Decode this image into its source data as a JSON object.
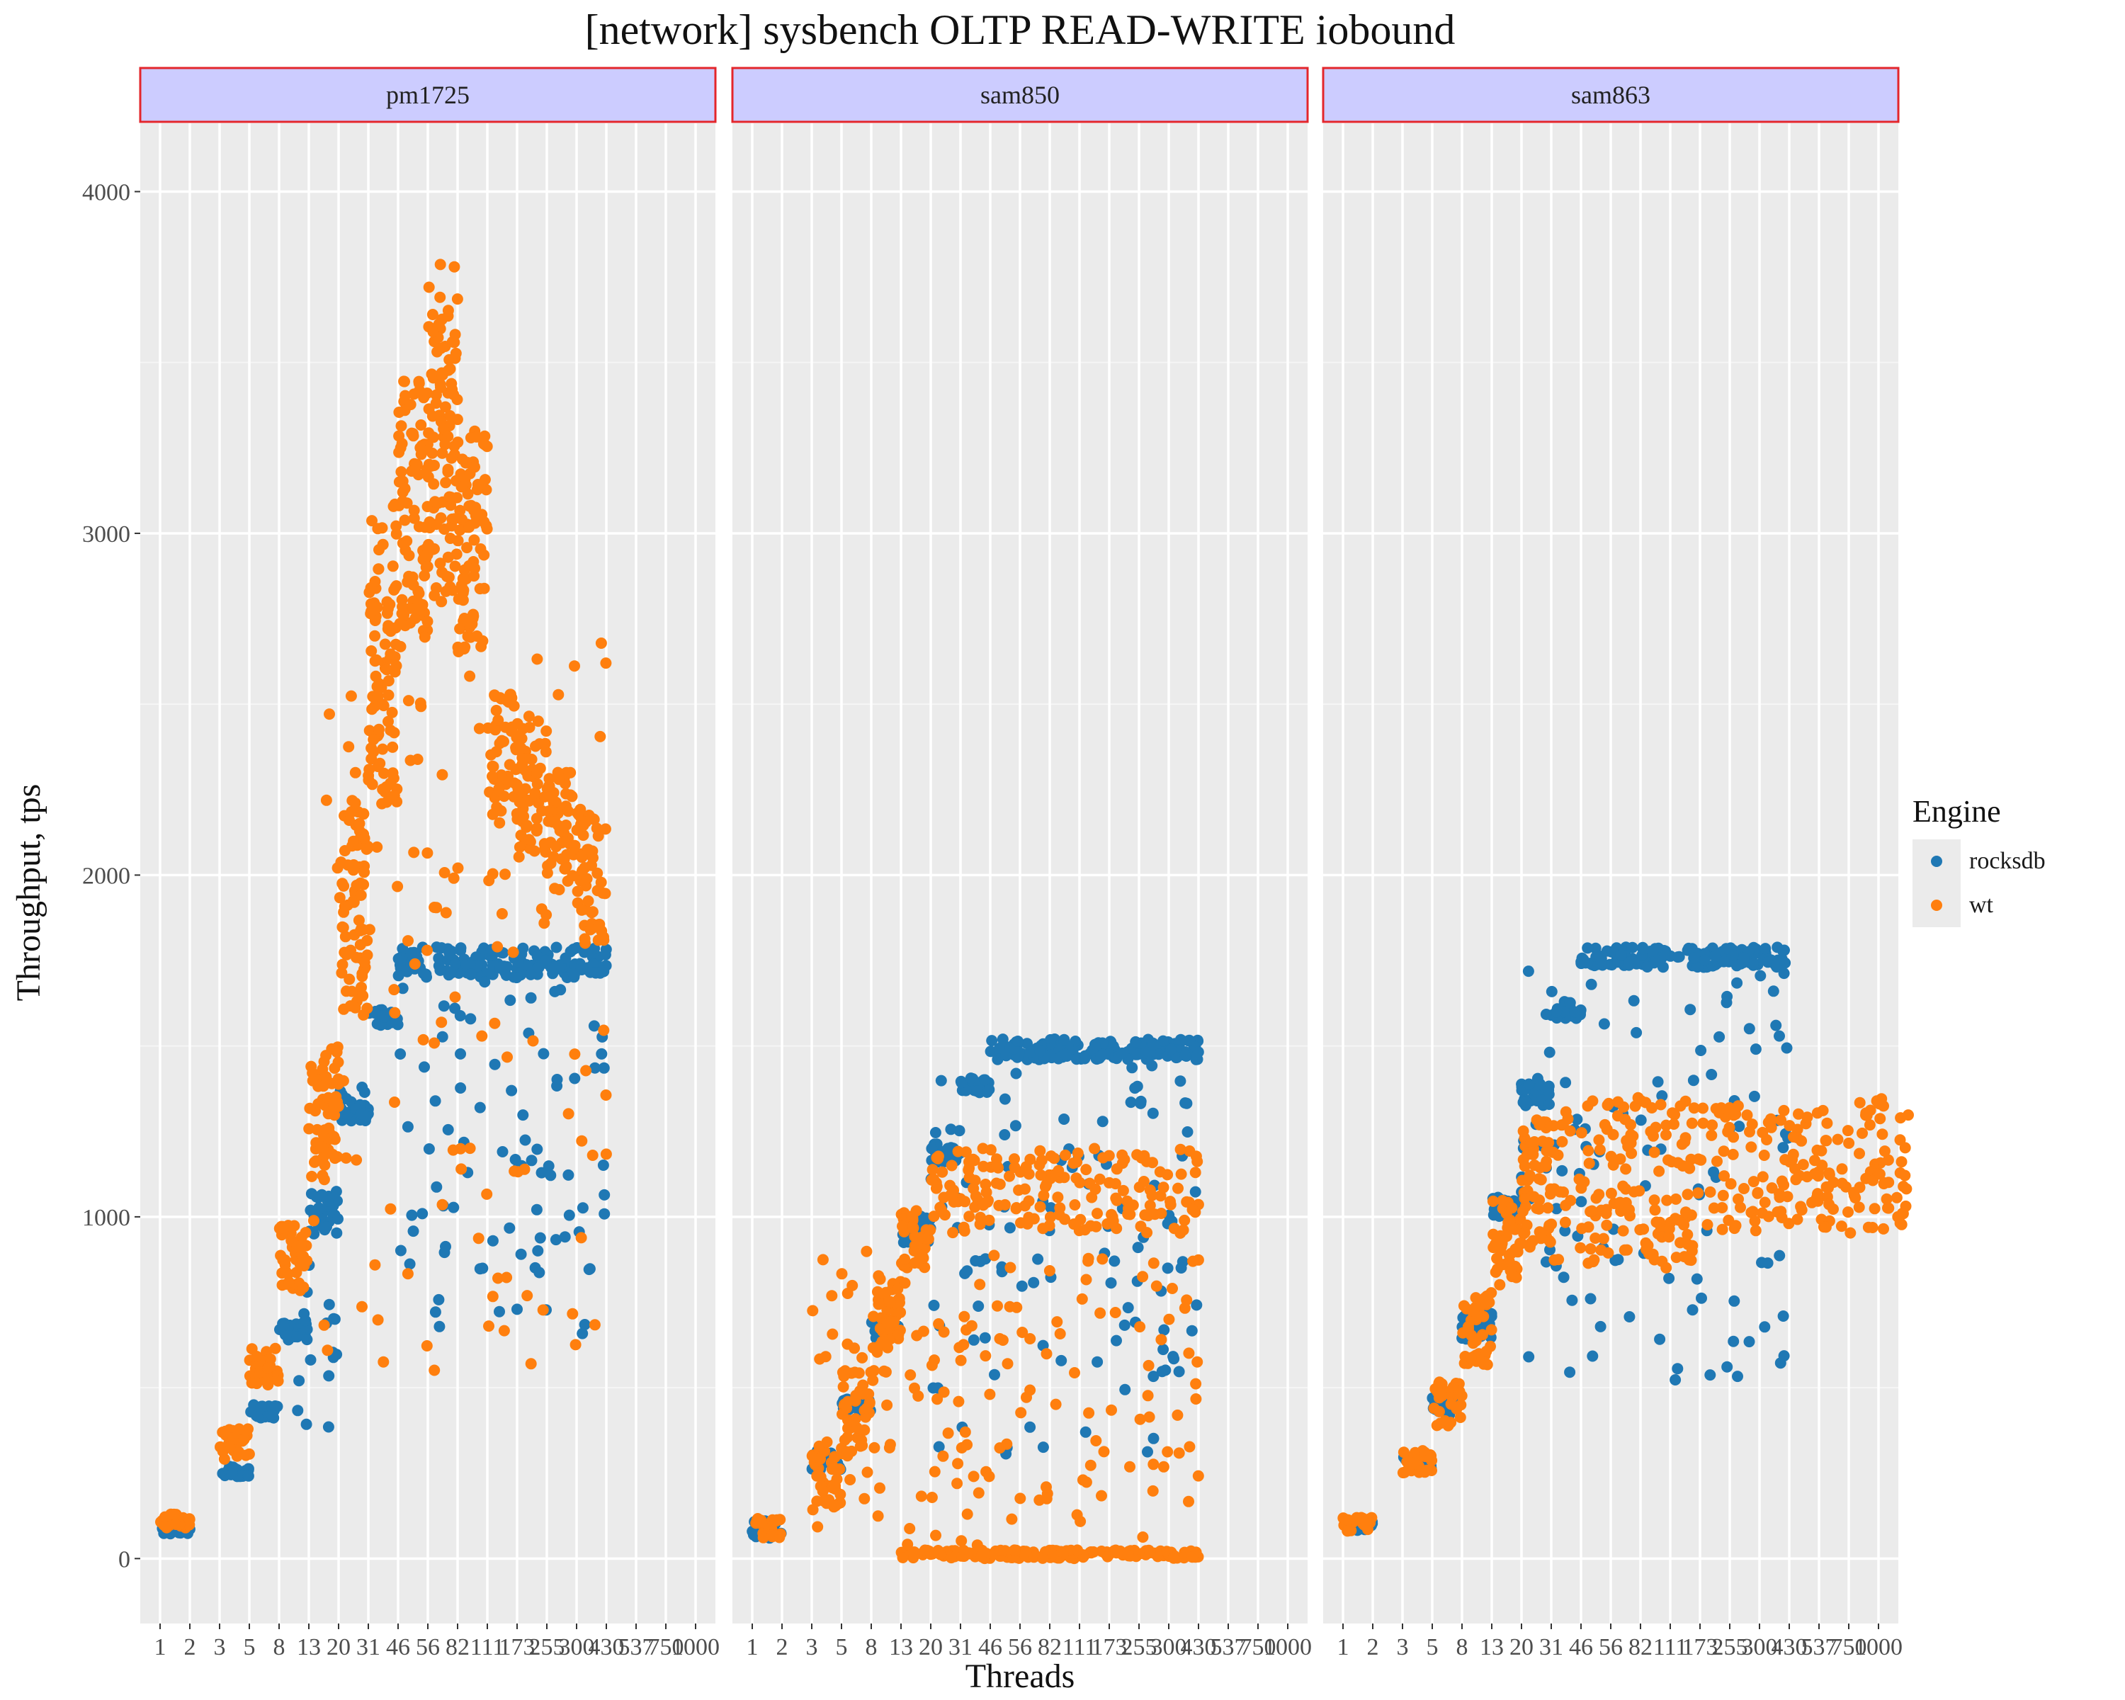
{
  "chart_data": {
    "type": "scatter",
    "title": "[network] sysbench OLTP READ-WRITE iobound",
    "xlabel": "Threads",
    "ylabel": "Throughput, tps",
    "x_tick_labels": [
      "1",
      "2",
      "3",
      "5",
      "8",
      "13",
      "20",
      "31",
      "46",
      "56",
      "82",
      "111",
      "173",
      "255",
      "300",
      "430",
      "537",
      "750",
      "1000"
    ],
    "ylim": [
      -190,
      4200
    ],
    "y_ticks": [
      0,
      1000,
      2000,
      3000,
      4000
    ],
    "grid": true,
    "legend_position": "right",
    "legend": {
      "title": "Engine",
      "entries": [
        {
          "name": "rocksdb",
          "color": "#1f78b4"
        },
        {
          "name": "wt",
          "color": "#ff7f0e"
        }
      ]
    },
    "facets": [
      {
        "label": "pm1725",
        "series": [
          {
            "name": "rocksdb",
            "color": "#1f78b4",
            "bands": [
              {
                "x_start": 0,
                "x_end": 1,
                "y_min": 70,
                "y_max": 100
              },
              {
                "x_start": 2,
                "x_end": 3,
                "y_min": 240,
                "y_max": 270
              },
              {
                "x_start": 3,
                "x_end": 4,
                "y_min": 410,
                "y_max": 450
              },
              {
                "x_start": 4,
                "x_end": 5,
                "y_min": 640,
                "y_max": 690
              },
              {
                "x_start": 5,
                "x_end": 6,
                "y_min": 950,
                "y_max": 1080
              },
              {
                "x_start": 6,
                "x_end": 7,
                "y_min": 1280,
                "y_max": 1380
              },
              {
                "x_start": 7,
                "x_end": 8,
                "y_min": 1560,
                "y_max": 1610
              },
              {
                "x_start": 8,
                "x_end": 15,
                "y_min": 1700,
                "y_max": 1790
              }
            ],
            "scatter": [
              {
                "x_start": 4.5,
                "x_end": 6,
                "y_min": 350,
                "y_max": 900
              },
              {
                "x_start": 8,
                "x_end": 15,
                "y_min": 650,
                "y_max": 1700
              }
            ]
          },
          {
            "name": "wt",
            "color": "#ff7f0e",
            "bands": [
              {
                "x_start": 0,
                "x_end": 1,
                "y_min": 90,
                "y_max": 130
              },
              {
                "x_start": 2,
                "x_end": 3,
                "y_min": 290,
                "y_max": 380
              },
              {
                "x_start": 3,
                "x_end": 4,
                "y_min": 500,
                "y_max": 620
              },
              {
                "x_start": 4,
                "x_end": 5,
                "y_min": 780,
                "y_max": 980
              },
              {
                "x_start": 5,
                "x_end": 6,
                "y_min": 1100,
                "y_max": 1500
              },
              {
                "x_start": 6,
                "x_end": 7,
                "y_min": 1600,
                "y_max": 2220
              },
              {
                "x_start": 7,
                "x_end": 8,
                "y_min": 2200,
                "y_max": 3100
              },
              {
                "x_start": 8,
                "x_end": 9,
                "y_min": 2650,
                "y_max": 3450
              },
              {
                "x_start": 9,
                "x_end": 10,
                "y_min": 2800,
                "y_max": 3800
              },
              {
                "x_start": 10,
                "x_end": 11,
                "y_min": 2650,
                "y_max": 3300
              },
              {
                "x_start": 11,
                "x_end": 12,
                "y_min": 2150,
                "y_max": 2550
              },
              {
                "x_start": 12,
                "x_end": 13,
                "y_min": 2050,
                "y_max": 2450
              },
              {
                "x_start": 13,
                "x_end": 14,
                "y_min": 1950,
                "y_max": 2300
              },
              {
                "x_start": 14,
                "x_end": 15,
                "y_min": 1800,
                "y_max": 2200
              }
            ],
            "scatter": [
              {
                "x_start": 5,
                "x_end": 15,
                "y_min": 550,
                "y_max": 2700
              }
            ]
          }
        ]
      },
      {
        "label": "sam850",
        "series": [
          {
            "name": "rocksdb",
            "color": "#1f78b4",
            "bands": [
              {
                "x_start": 0,
                "x_end": 1,
                "y_min": 60,
                "y_max": 110
              },
              {
                "x_start": 2,
                "x_end": 3,
                "y_min": 260,
                "y_max": 320
              },
              {
                "x_start": 3,
                "x_end": 4,
                "y_min": 420,
                "y_max": 470
              },
              {
                "x_start": 4,
                "x_end": 5,
                "y_min": 640,
                "y_max": 700
              },
              {
                "x_start": 5,
                "x_end": 6,
                "y_min": 920,
                "y_max": 1010
              },
              {
                "x_start": 6,
                "x_end": 7,
                "y_min": 1160,
                "y_max": 1220
              },
              {
                "x_start": 7,
                "x_end": 8,
                "y_min": 1360,
                "y_max": 1410
              },
              {
                "x_start": 8,
                "x_end": 15,
                "y_min": 1460,
                "y_max": 1520
              }
            ],
            "scatter": [
              {
                "x_start": 6,
                "x_end": 15,
                "y_min": 300,
                "y_max": 1450
              }
            ]
          },
          {
            "name": "wt",
            "color": "#ff7f0e",
            "bands": [
              {
                "x_start": 0,
                "x_end": 1,
                "y_min": 60,
                "y_max": 120
              },
              {
                "x_start": 2,
                "x_end": 3,
                "y_min": 150,
                "y_max": 330
              },
              {
                "x_start": 3,
                "x_end": 4,
                "y_min": 300,
                "y_max": 560
              },
              {
                "x_start": 4,
                "x_end": 5,
                "y_min": 600,
                "y_max": 820
              },
              {
                "x_start": 5,
                "x_end": 6,
                "y_min": 850,
                "y_max": 1020
              },
              {
                "x_start": 6,
                "x_end": 15,
                "y_min": 950,
                "y_max": 1200
              },
              {
                "x_start": 5,
                "x_end": 15,
                "y_min": 0,
                "y_max": 25
              }
            ],
            "scatter": [
              {
                "x_start": 2,
                "x_end": 15,
                "y_min": 30,
                "y_max": 900
              }
            ]
          }
        ]
      },
      {
        "label": "sam863",
        "series": [
          {
            "name": "rocksdb",
            "color": "#1f78b4",
            "bands": [
              {
                "x_start": 0,
                "x_end": 1,
                "y_min": 80,
                "y_max": 110
              },
              {
                "x_start": 2,
                "x_end": 3,
                "y_min": 260,
                "y_max": 300
              },
              {
                "x_start": 3,
                "x_end": 4,
                "y_min": 420,
                "y_max": 480
              },
              {
                "x_start": 4,
                "x_end": 5,
                "y_min": 640,
                "y_max": 720
              },
              {
                "x_start": 5,
                "x_end": 6,
                "y_min": 1000,
                "y_max": 1060
              },
              {
                "x_start": 6,
                "x_end": 7,
                "y_min": 1320,
                "y_max": 1390
              },
              {
                "x_start": 7,
                "x_end": 8,
                "y_min": 1580,
                "y_max": 1630
              },
              {
                "x_start": 8,
                "x_end": 15,
                "y_min": 1730,
                "y_max": 1790
              }
            ],
            "scatter": [
              {
                "x_start": 6,
                "x_end": 15,
                "y_min": 500,
                "y_max": 1720
              }
            ]
          },
          {
            "name": "wt",
            "color": "#ff7f0e",
            "bands": [
              {
                "x_start": 0,
                "x_end": 1,
                "y_min": 80,
                "y_max": 120
              },
              {
                "x_start": 2,
                "x_end": 3,
                "y_min": 250,
                "y_max": 320
              },
              {
                "x_start": 3,
                "x_end": 4,
                "y_min": 380,
                "y_max": 520
              },
              {
                "x_start": 4,
                "x_end": 5,
                "y_min": 550,
                "y_max": 780
              },
              {
                "x_start": 5,
                "x_end": 6,
                "y_min": 800,
                "y_max": 1050
              },
              {
                "x_start": 6,
                "x_end": 7,
                "y_min": 900,
                "y_max": 1300
              },
              {
                "x_start": 7,
                "x_end": 12,
                "y_min": 850,
                "y_max": 1350
              },
              {
                "x_start": 12,
                "x_end": 19,
                "y_min": 950,
                "y_max": 1350
              }
            ],
            "scatter": []
          }
        ]
      }
    ]
  }
}
